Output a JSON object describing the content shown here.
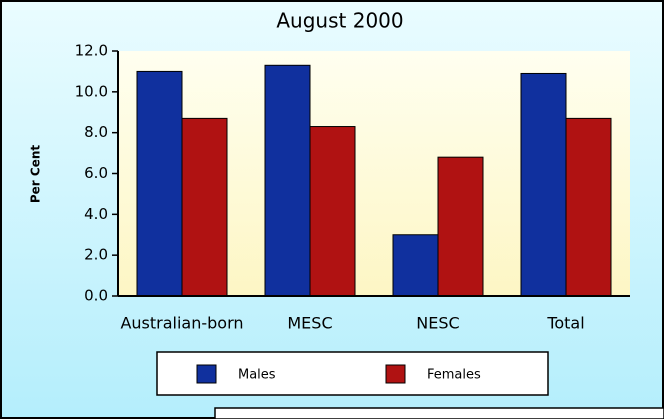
{
  "chart_data": {
    "type": "bar",
    "title": "August 2000",
    "y_label": "Per Cent",
    "categories": [
      "Australian-born",
      "MESC",
      "NESC",
      "Total"
    ],
    "series": [
      {
        "name": "Males",
        "color": "#10309e",
        "values": [
          11.0,
          11.3,
          3.0,
          10.9
        ]
      },
      {
        "name": "Females",
        "color": "#b01212",
        "values": [
          8.7,
          8.3,
          6.8,
          8.7
        ]
      }
    ],
    "ylim": [
      0,
      12
    ],
    "yticks": [
      {
        "value": 0,
        "label": "0.0"
      },
      {
        "value": 2,
        "label": "2.0"
      },
      {
        "value": 4,
        "label": "4.0"
      },
      {
        "value": 6,
        "label": "6.0"
      },
      {
        "value": 8,
        "label": "8.0"
      },
      {
        "value": 10,
        "label": "10.0"
      },
      {
        "value": 12,
        "label": "12.0"
      }
    ],
    "legend": "bottom"
  }
}
